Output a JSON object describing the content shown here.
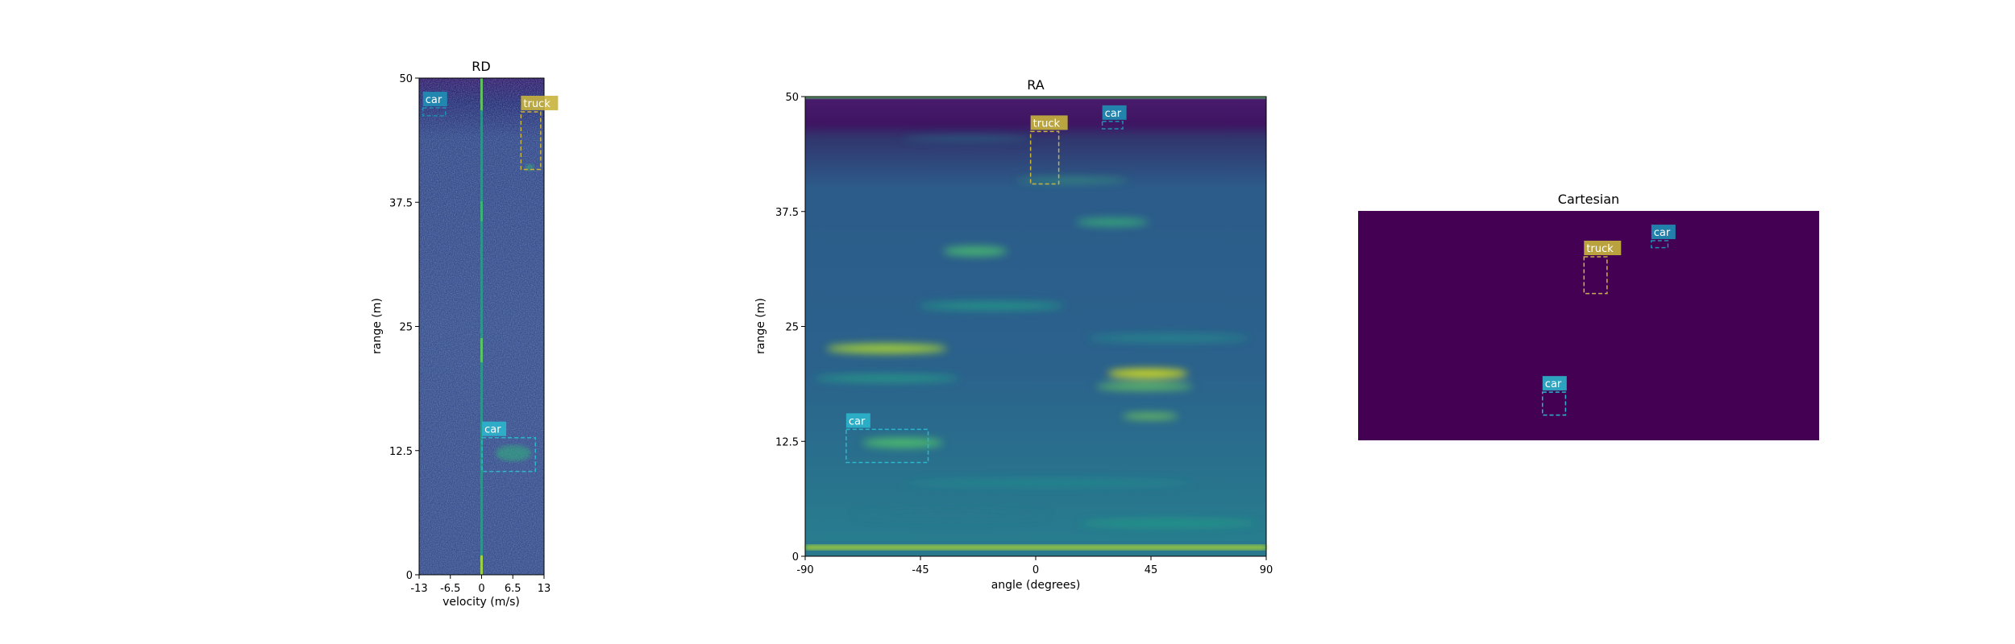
{
  "chart_data": [
    {
      "type": "heatmap",
      "title": "RD",
      "xlabel": "velocity (m/s)",
      "ylabel": "range (m)",
      "xlim": [
        -13,
        13
      ],
      "ylim": [
        0,
        50
      ],
      "xticks": [
        "-13",
        "-6.5",
        "0",
        "6.5",
        "13"
      ],
      "xtick_values": [
        -13,
        -6.5,
        0,
        6.5,
        13
      ],
      "yticks": [
        "0",
        "12.5",
        "25",
        "37.5",
        "50"
      ],
      "ytick_values": [
        0,
        12.5,
        25,
        37.5,
        50
      ],
      "colormap": "viridis",
      "boxes": [
        {
          "label": "car",
          "color": "#1f8fb5",
          "x0": -12.2,
          "x1": -7.5,
          "y0": 46.2,
          "y1": 47.0
        },
        {
          "label": "truck",
          "color": "#c8b43c",
          "x0": 8.2,
          "x1": 12.3,
          "y0": 40.8,
          "y1": 46.6
        },
        {
          "label": "car",
          "color": "#2cb5cc",
          "x0": 0.1,
          "x1": 11.2,
          "y0": 10.4,
          "y1": 13.8
        }
      ]
    },
    {
      "type": "heatmap",
      "title": "RA",
      "xlabel": "angle (degrees)",
      "ylabel": "range (m)",
      "xlim": [
        -90,
        90
      ],
      "ylim": [
        0,
        50
      ],
      "xticks": [
        "-90",
        "-45",
        "0",
        "45",
        "90"
      ],
      "xtick_values": [
        -90,
        -45,
        0,
        45,
        90
      ],
      "yticks": [
        "0",
        "12.5",
        "25",
        "37.5",
        "50"
      ],
      "ytick_values": [
        0,
        12.5,
        25,
        37.5,
        50
      ],
      "colormap": "viridis",
      "boxes": [
        {
          "label": "truck",
          "color": "#c8b43c",
          "x0": -2,
          "x1": 9,
          "y0": 40.5,
          "y1": 46.2
        },
        {
          "label": "car",
          "color": "#1f8fb5",
          "x0": 26,
          "x1": 34,
          "y0": 46.5,
          "y1": 47.3
        },
        {
          "label": "car",
          "color": "#2cb5cc",
          "x0": -74,
          "x1": -42,
          "y0": 10.2,
          "y1": 13.8
        }
      ]
    },
    {
      "type": "heatmap",
      "title": "Cartesian",
      "xlabel": "",
      "ylabel": "",
      "axes_visible": false,
      "background": "#440154",
      "boxes": [
        {
          "label": "truck",
          "color": "#c8b43c",
          "x0": 0.49,
          "x1": 0.54,
          "y0": 0.2,
          "y1": 0.36
        },
        {
          "label": "car",
          "color": "#1f8fb5",
          "x0": 0.636,
          "x1": 0.672,
          "y0": 0.13,
          "y1": 0.16
        },
        {
          "label": "car",
          "color": "#2cb5cc",
          "x0": 0.4,
          "x1": 0.45,
          "y0": 0.79,
          "y1": 0.89
        }
      ]
    }
  ]
}
